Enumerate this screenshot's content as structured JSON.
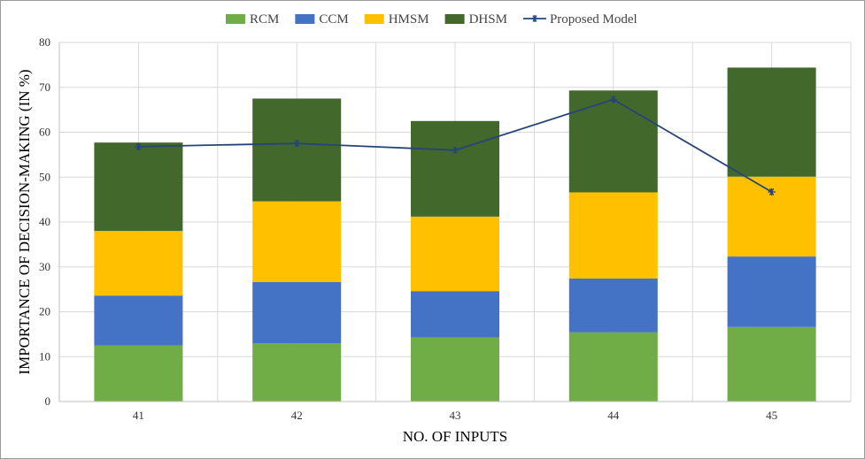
{
  "chart_data": {
    "type": "bar",
    "stacked": true,
    "categories": [
      "41",
      "42",
      "43",
      "44",
      "45"
    ],
    "series": [
      {
        "name": "RCM",
        "color": "#70ad47",
        "values": [
          12.5,
          13.0,
          14.3,
          15.4,
          16.6
        ]
      },
      {
        "name": "CCM",
        "color": "#4472c4",
        "values": [
          11.1,
          13.6,
          10.3,
          12.0,
          15.7
        ]
      },
      {
        "name": "HMSM",
        "color": "#ffc000",
        "values": [
          14.4,
          18.0,
          16.6,
          19.2,
          17.8
        ]
      },
      {
        "name": "DHSM",
        "color": "#43682b",
        "values": [
          19.7,
          22.9,
          21.3,
          22.7,
          24.3
        ]
      }
    ],
    "line_series": {
      "name": "Proposed Model",
      "color": "#264478",
      "marker": "star",
      "values": [
        56.8,
        57.5,
        56.0,
        67.3,
        46.7
      ]
    },
    "xlabel": "NO. OF INPUTS",
    "ylabel": "IMPORTANCE OF DECISION-MAKING (IN %)",
    "ylim": [
      0,
      80
    ],
    "yticks": [
      0,
      10,
      20,
      30,
      40,
      50,
      60,
      70,
      80
    ],
    "grid": true,
    "legend_position": "top"
  }
}
